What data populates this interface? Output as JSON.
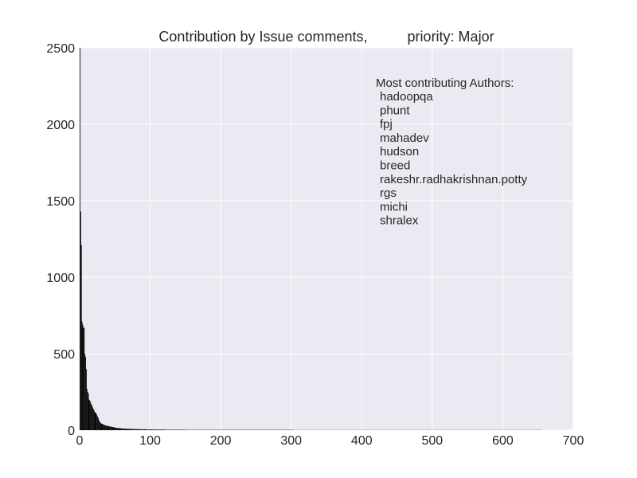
{
  "chart_data": {
    "type": "bar",
    "title": "Contribution by Issue comments,          priority: Major",
    "xlabel": "",
    "ylabel": "",
    "xlim": [
      0,
      700
    ],
    "ylim": [
      0,
      2500
    ],
    "xticks": [
      "0",
      "100",
      "200",
      "300",
      "400",
      "500",
      "600",
      "700"
    ],
    "yticks": [
      "0",
      "500",
      "1000",
      "1500",
      "2000",
      "2500"
    ],
    "grid": true,
    "background": "#eaeaf2",
    "grid_color": "#ffffff",
    "bar_color": "#000000",
    "description_bars": "one bar per author, sorted descending; approx 620 authors",
    "values": [
      2500,
      1430,
      1210,
      710,
      690,
      670,
      670,
      500,
      480,
      400,
      270,
      250,
      240,
      200,
      195,
      185,
      170,
      165,
      150,
      140,
      130,
      120,
      115,
      110,
      100,
      90,
      80,
      65,
      55,
      50,
      45,
      42,
      40,
      38,
      36,
      34,
      32,
      30,
      29,
      28,
      27,
      26,
      25,
      24,
      23,
      22,
      21,
      20,
      19,
      18,
      17,
      16,
      15,
      15,
      14,
      14,
      13,
      13,
      12,
      12,
      11,
      11,
      11,
      10,
      10,
      10,
      10,
      9,
      9,
      9,
      9,
      9,
      8,
      8,
      8,
      8,
      8,
      8,
      7,
      7,
      7,
      7,
      7,
      7,
      7,
      6,
      6,
      6,
      6,
      6,
      6,
      6,
      6,
      6,
      5,
      5,
      5,
      5,
      5,
      5,
      5,
      5,
      5,
      5,
      5,
      4,
      4,
      4,
      4,
      4,
      4,
      4,
      4,
      4,
      4,
      4,
      4,
      4,
      4,
      4,
      4,
      3,
      3,
      3,
      3,
      3,
      3,
      3,
      3,
      3,
      3,
      3,
      3,
      3,
      3,
      3,
      3,
      3,
      3,
      3,
      3,
      3,
      3,
      3,
      3,
      3,
      3,
      3,
      3,
      3,
      2,
      2,
      2,
      2,
      2,
      2,
      2,
      2,
      2,
      2,
      2,
      2,
      2,
      2,
      2,
      2,
      2,
      2,
      2,
      2,
      2,
      2,
      2,
      2,
      2,
      2,
      2,
      2,
      2,
      2,
      2,
      2,
      2,
      2,
      2,
      2,
      2,
      2,
      2,
      2,
      2,
      2,
      2,
      2,
      2,
      2,
      2,
      2,
      2,
      2,
      2,
      2,
      2,
      2,
      2,
      2,
      2,
      2,
      2,
      2,
      2,
      2,
      2,
      2,
      2,
      2,
      2,
      2,
      2,
      2,
      2,
      2,
      2,
      2,
      2,
      2,
      2,
      2,
      2,
      2,
      2,
      2,
      2,
      2,
      2,
      2,
      2,
      2,
      2,
      2,
      2,
      2,
      2,
      2,
      2,
      2,
      2,
      2,
      2,
      2,
      2,
      2,
      2,
      2,
      2,
      2,
      2,
      2,
      2,
      2,
      2,
      2,
      2,
      2,
      2,
      2,
      2,
      2,
      2,
      2,
      2,
      2,
      2,
      2,
      2,
      2,
      2,
      2,
      2,
      2,
      2,
      2,
      2,
      2,
      2,
      2,
      2,
      2,
      2,
      2,
      2,
      2,
      2,
      2,
      2,
      2,
      2,
      2,
      2,
      2,
      2,
      2,
      2,
      1,
      1,
      1,
      1,
      1,
      1,
      1,
      1,
      1,
      1,
      1,
      1,
      1,
      1,
      1,
      1,
      1,
      1,
      1,
      1,
      1,
      1,
      1,
      1,
      1,
      1,
      1,
      1,
      1,
      1,
      1,
      1,
      1,
      1,
      1,
      1,
      1,
      1,
      1,
      1,
      1,
      1,
      1,
      1,
      1,
      1,
      1,
      1,
      1,
      1,
      1,
      1,
      1,
      1,
      1,
      1,
      1,
      1,
      1,
      1,
      1,
      1,
      1,
      1,
      1,
      1,
      1,
      1,
      1,
      1,
      1,
      1,
      1,
      1,
      1,
      1,
      1,
      1,
      1,
      1,
      1,
      1,
      1,
      1,
      1,
      1,
      1,
      1,
      1,
      1,
      1,
      1,
      1,
      1,
      1,
      1,
      1,
      1,
      1,
      1,
      1,
      1,
      1,
      1,
      1,
      1,
      1,
      1,
      1,
      1,
      1,
      1,
      1,
      1,
      1,
      1,
      1,
      1,
      1,
      1,
      1,
      1,
      1,
      1,
      1,
      1,
      1,
      1,
      1,
      1,
      1,
      1,
      1,
      1,
      1,
      1,
      1,
      1,
      1,
      1,
      1,
      1,
      1,
      1,
      1,
      1,
      1,
      1,
      1,
      1,
      1,
      1,
      1,
      1,
      1,
      1,
      1,
      1,
      1,
      1,
      1,
      1,
      1,
      1,
      1,
      1,
      1,
      1,
      1,
      1,
      1,
      1,
      1,
      1,
      1,
      1,
      1,
      1,
      1,
      1,
      1,
      1,
      1,
      1,
      1,
      1,
      1,
      1,
      1,
      1,
      1,
      1,
      1,
      1,
      1,
      1,
      1,
      1,
      1,
      1,
      1,
      1,
      1,
      1,
      1,
      1,
      1,
      1,
      1,
      1,
      1,
      1,
      1,
      1,
      1,
      1,
      1,
      1,
      1,
      1,
      1,
      1,
      1,
      1,
      1,
      1,
      1,
      1,
      1,
      1,
      1,
      1,
      1,
      1,
      1,
      1,
      1,
      1,
      1,
      1,
      1,
      1,
      1,
      1,
      1,
      1,
      1,
      1,
      1,
      1,
      1,
      1,
      1,
      1,
      1,
      1,
      1,
      1,
      1,
      1,
      1,
      1,
      1,
      1,
      1,
      1,
      1,
      1,
      1,
      1,
      1,
      1,
      1,
      1,
      1,
      1,
      1,
      1,
      1,
      1,
      1,
      1,
      1,
      1,
      1,
      1,
      1,
      1,
      1,
      1,
      1,
      1,
      1,
      1,
      1,
      1,
      1,
      1,
      1,
      1,
      1,
      1,
      1,
      1,
      1,
      1,
      1,
      1,
      1,
      1,
      1,
      1,
      1,
      1,
      1,
      1,
      1,
      1,
      1,
      1,
      1,
      1,
      1,
      1,
      1,
      1,
      1,
      1,
      1,
      1,
      1,
      1,
      1,
      1,
      1,
      1,
      1,
      1,
      1,
      1,
      1,
      1,
      1,
      1,
      1,
      1,
      1,
      1,
      1,
      1,
      1,
      1,
      1
    ],
    "annotation": {
      "heading": "Most contributing Authors:",
      "authors": [
        "hadoopqa",
        "phunt",
        "fpj",
        "mahadev",
        "hudson",
        "breed",
        "rakeshr.radhakrishnan.potty",
        "rgs",
        "michi",
        "shralex"
      ]
    }
  }
}
